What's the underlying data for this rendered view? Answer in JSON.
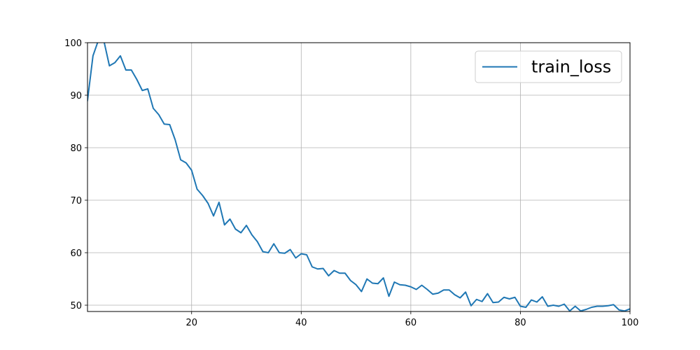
{
  "chart_data": {
    "type": "line",
    "title": "",
    "xlabel": "",
    "ylabel": "",
    "xlim": [
      1,
      100
    ],
    "ylim": [
      48.8,
      100
    ],
    "x_ticks": [
      20,
      40,
      60,
      80,
      100
    ],
    "y_ticks": [
      50,
      60,
      70,
      80,
      90,
      100
    ],
    "grid": true,
    "legend": {
      "placement": "top-right",
      "entries": [
        "train_loss"
      ]
    },
    "series": [
      {
        "name": "train_loss",
        "color": "#1f77b4",
        "x": [
          1,
          2,
          3,
          4,
          5,
          6,
          7,
          8,
          9,
          10,
          11,
          12,
          13,
          14,
          15,
          16,
          17,
          18,
          19,
          20,
          21,
          22,
          23,
          24,
          25,
          26,
          27,
          28,
          29,
          30,
          31,
          32,
          33,
          34,
          35,
          36,
          37,
          38,
          39,
          40,
          41,
          42,
          43,
          44,
          45,
          46,
          47,
          48,
          49,
          50,
          51,
          52,
          53,
          54,
          55,
          56,
          57,
          58,
          59,
          60,
          61,
          62,
          63,
          64,
          65,
          66,
          67,
          68,
          69,
          70,
          71,
          72,
          73,
          74,
          75,
          76,
          77,
          78,
          79,
          80,
          81,
          82,
          83,
          84,
          85,
          86,
          87,
          88,
          89,
          90,
          91,
          92,
          93,
          94,
          95,
          96,
          97,
          98,
          99,
          100
        ],
        "values": [
          89.0,
          97.5,
          100.5,
          100.3,
          95.6,
          96.2,
          97.5,
          94.8,
          94.8,
          93.0,
          90.9,
          91.2,
          87.5,
          86.3,
          84.5,
          84.4,
          81.5,
          77.7,
          77.1,
          75.7,
          72.1,
          70.9,
          69.4,
          67.0,
          69.6,
          65.3,
          66.4,
          64.5,
          63.8,
          65.2,
          63.4,
          62.1,
          60.2,
          60.0,
          61.7,
          60.0,
          59.9,
          60.6,
          59.0,
          59.8,
          59.6,
          57.3,
          56.9,
          57.0,
          55.6,
          56.6,
          56.1,
          56.1,
          54.7,
          53.9,
          52.6,
          55.0,
          54.2,
          54.1,
          55.2,
          51.7,
          54.4,
          53.9,
          53.8,
          53.5,
          53.0,
          53.8,
          53.0,
          52.1,
          52.3,
          52.9,
          52.9,
          52.0,
          51.4,
          52.5,
          49.9,
          51.1,
          50.7,
          52.2,
          50.5,
          50.6,
          51.5,
          51.2,
          51.5,
          49.8,
          49.6,
          51.0,
          50.6,
          51.6,
          49.8,
          50.0,
          49.8,
          50.2,
          48.9,
          49.8,
          48.9,
          49.2,
          49.6,
          49.8,
          49.8,
          49.9,
          50.1,
          49.1,
          48.9,
          49.3
        ]
      }
    ]
  }
}
